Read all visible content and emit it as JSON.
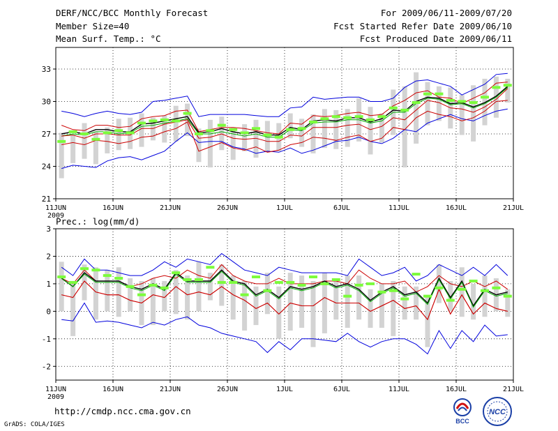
{
  "header": {
    "line1_left": "DERF/NCC/BCC Monthly Forecast",
    "line2_left": "Member Size=40",
    "line3_left": "Mean Surf. Temp.: °C",
    "line1_right": "For 2009/06/11-2009/07/20",
    "line2_right": "Fcst Started Refer Date 2009/06/10",
    "line3_right": "Fcst Produced Date 2009/06/11"
  },
  "footer": {
    "url": "http://cmdp.ncc.cma.gov.cn",
    "grads": "GrADS: COLA/IGES",
    "logo_bcc": "BCC",
    "logo_ncc": "NCC"
  },
  "colors": {
    "envelope": "#0000dd",
    "spread": "#cc0000",
    "mean": "#000000",
    "median": "#00aa00",
    "box": "#d3d3d3",
    "marker": "#7cfc3c"
  },
  "chart_data": [
    {
      "type": "line",
      "title": "Mean Surf. Temp.: °C",
      "x_ticks": [
        "11JUN",
        "16JUN",
        "21JUN",
        "26JUN",
        "1JUL",
        "6JUL",
        "11JUL",
        "16JUL",
        "21JUL"
      ],
      "x_year_label": "2009",
      "x_range": [
        0,
        40
      ],
      "ylim": [
        21,
        35
      ],
      "y_ticks": [
        21,
        24,
        27,
        30,
        33
      ],
      "series": [
        {
          "name": "max",
          "values": [
            23.8,
            24.1,
            24,
            23.9,
            24.5,
            24.8,
            24.9,
            24.6,
            25,
            25.4,
            26.3,
            27.1,
            26.2,
            26.3,
            26.3,
            25.8,
            25.6,
            25.2,
            25.4,
            25.3,
            25.7,
            25.2,
            25.5,
            25.9,
            26.3,
            26.4,
            26.7,
            26.3,
            26.1,
            26.6,
            27.4,
            27.2,
            28,
            28.4,
            28.8,
            28.4,
            28.2,
            28.7,
            29.1,
            29.3
          ]
        },
        {
          "name": "upper",
          "values": [
            29.1,
            28.9,
            28.6,
            28.9,
            29.1,
            28.9,
            28.8,
            29,
            30,
            30.1,
            30.3,
            30.5,
            28.6,
            28.8,
            28.8,
            28.8,
            28.8,
            28.7,
            28.6,
            28.6,
            29.4,
            29.5,
            30.4,
            30.2,
            30.3,
            30.4,
            30.4,
            30,
            30,
            30.3,
            31.3,
            31.9,
            32,
            31.7,
            31.4,
            30.6,
            31.1,
            31.6,
            32.5,
            32.6
          ]
        },
        {
          "name": "spread_hi",
          "values": [
            27.8,
            27.4,
            27.3,
            27.8,
            27.8,
            27.6,
            27.7,
            28.4,
            28.6,
            28.7,
            29.1,
            29.2,
            27.2,
            27.4,
            27.6,
            27.6,
            27.5,
            27.3,
            27.1,
            27,
            28,
            27.9,
            28.7,
            28.6,
            28.7,
            28.9,
            29,
            28.7,
            28.8,
            29.6,
            30.1,
            30.8,
            31,
            30.4,
            30.3,
            29.8,
            30.3,
            30.8,
            31.7,
            31.8
          ]
        },
        {
          "name": "mean",
          "values": [
            27,
            27.2,
            27,
            27.4,
            27.4,
            27.2,
            27.2,
            27.9,
            28,
            28.2,
            28.4,
            28.6,
            27.1,
            27.2,
            27.5,
            27.2,
            27,
            27.2,
            26.9,
            26.9,
            27.6,
            27.4,
            28.2,
            28.3,
            28.2,
            28.5,
            28.5,
            28.1,
            28.4,
            29.2,
            29.1,
            30,
            30.4,
            30.3,
            29.8,
            29.9,
            29.5,
            29.9,
            30.5,
            31.4
          ]
        },
        {
          "name": "median",
          "values": [
            26.8,
            27,
            26.9,
            27.2,
            27.2,
            27,
            27.1,
            27.7,
            27.8,
            28,
            28.2,
            28.4,
            27,
            27,
            27.2,
            27,
            26.8,
            27,
            26.7,
            26.7,
            27.4,
            27.3,
            28,
            28.1,
            28.1,
            28.3,
            28.3,
            28,
            28.2,
            29,
            29,
            29.8,
            30.3,
            30.2,
            29.7,
            29.8,
            29.4,
            29.8,
            30.4,
            31.3
          ]
        },
        {
          "name": "spread_lo",
          "values": [
            26.8,
            26.9,
            26.6,
            27,
            27,
            26.9,
            26.9,
            27.5,
            27.5,
            27.9,
            28.1,
            28.3,
            26.6,
            26.7,
            27,
            26.6,
            26.5,
            26.6,
            26.3,
            26.3,
            26.9,
            26.8,
            27.6,
            27.6,
            27.6,
            27.8,
            27.9,
            27.4,
            27.7,
            28.5,
            28.3,
            29.2,
            30.1,
            29.9,
            29.4,
            29.3,
            29,
            29.5,
            30.2,
            31.2
          ]
        },
        {
          "name": "min",
          "values": [
            26,
            26.2,
            26,
            26.4,
            26.3,
            26.1,
            26.3,
            26.7,
            26.8,
            27.2,
            27.5,
            28.1,
            25.4,
            25.8,
            26.2,
            25.7,
            25.5,
            25.8,
            25.3,
            25.5,
            26,
            26.2,
            26.7,
            26.6,
            26.4,
            26.7,
            26.9,
            26.3,
            26.6,
            27.6,
            27.4,
            28.5,
            29.1,
            28.8,
            28.6,
            28.2,
            28.5,
            29.1,
            30,
            30.1
          ]
        }
      ],
      "boxes": [
        [
          22.9,
          27.1
        ],
        [
          24.3,
          26.9
        ],
        [
          24.7,
          28
        ],
        [
          24.2,
          27.2
        ],
        [
          25.2,
          27.6
        ],
        [
          25.5,
          28.4
        ],
        [
          25.6,
          28.5
        ],
        [
          25.8,
          28.9
        ],
        [
          26.4,
          28.5
        ],
        [
          26.2,
          28.7
        ],
        [
          26.3,
          29.6
        ],
        [
          26.8,
          29.8
        ],
        [
          24.4,
          27.5
        ],
        [
          23.9,
          28.3
        ],
        [
          25.5,
          28.6
        ],
        [
          24.6,
          27.6
        ],
        [
          25.4,
          27.9
        ],
        [
          24.8,
          28.3
        ],
        [
          25.3,
          28.2
        ],
        [
          25.4,
          28
        ],
        [
          26.6,
          28.9
        ],
        [
          25.8,
          28.4
        ],
        [
          25.2,
          28.8
        ],
        [
          25.7,
          29.3
        ],
        [
          25.6,
          29.2
        ],
        [
          25.8,
          29.3
        ],
        [
          26.3,
          30.3
        ],
        [
          25.1,
          29.5
        ],
        [
          26.2,
          28.9
        ],
        [
          26.9,
          31.1
        ],
        [
          23.9,
          31.4
        ],
        [
          26.1,
          32.7
        ],
        [
          27.8,
          31.8
        ],
        [
          28.2,
          31.4
        ],
        [
          27.5,
          31.3
        ],
        [
          26.9,
          30.6
        ],
        [
          26.3,
          31.5
        ],
        [
          27.8,
          32.1
        ],
        [
          28.5,
          32.3
        ],
        [
          29.9,
          32.1
        ]
      ],
      "markers": [
        26.3,
        27.2,
        27,
        26.5,
        27.1,
        27.3,
        27.1,
        28,
        28.2,
        28.3,
        28.2,
        28.9,
        27,
        27.3,
        27.8,
        27.4,
        27.1,
        27.5,
        26.9,
        26.7,
        27.4,
        27.5,
        28.1,
        28.4,
        28.6,
        28.5,
        28.6,
        28.3,
        28.6,
        29.4,
        29.2,
        29.9,
        30.7,
        30.7,
        30.1,
        30,
        29.9,
        30.4,
        31.3,
        31.5
      ]
    },
    {
      "type": "line",
      "title": "Prec.: log(mm/d)",
      "x_ticks": [
        "11JUN",
        "16JUN",
        "21JUN",
        "26JUN",
        "1JUL",
        "6JUL",
        "11JUL",
        "16JUL",
        "21JUL"
      ],
      "x_year_label": "2009",
      "x_range": [
        0,
        40
      ],
      "ylim": [
        -2.5,
        3
      ],
      "y_ticks": [
        -2,
        -1,
        0,
        1,
        2,
        3
      ],
      "series": [
        {
          "name": "max",
          "values": [
            -0.3,
            -0.35,
            0.3,
            -0.4,
            -0.35,
            -0.4,
            -0.5,
            -0.6,
            -0.4,
            -0.5,
            -0.3,
            -0.2,
            -0.5,
            -0.6,
            -0.8,
            -0.9,
            -1.0,
            -1.1,
            -1.5,
            -1.1,
            -1.4,
            -1.0,
            -1.0,
            -1.05,
            -1.1,
            -0.8,
            -1.1,
            -1.3,
            -1.1,
            -1.0,
            -1.0,
            -1.2,
            -1.55,
            -0.7,
            -1.35,
            -0.7,
            -1.1,
            -0.5,
            -0.9,
            -0.85
          ]
        },
        {
          "name": "upper",
          "values": [
            1.6,
            1.3,
            1.9,
            1.5,
            1.5,
            1.4,
            1.3,
            1.3,
            1.5,
            1.8,
            1.6,
            1.9,
            1.8,
            1.7,
            2.1,
            1.8,
            1.5,
            1.4,
            1.3,
            1.6,
            1.5,
            1.4,
            1.4,
            1.4,
            1.4,
            1.3,
            1.9,
            1.6,
            1.3,
            1.4,
            1.6,
            1.1,
            1.3,
            1.7,
            1.5,
            1.3,
            1.6,
            1.3,
            1.7,
            1.3
          ]
        },
        {
          "name": "spread_hi",
          "values": [
            1.2,
            1.0,
            1.5,
            1.1,
            1.1,
            1.1,
            0.9,
            1.0,
            1.2,
            1.3,
            1.2,
            1.5,
            1.3,
            1.2,
            1.7,
            1.3,
            1.1,
            1.0,
            1.0,
            1.2,
            1.0,
            1.0,
            1.0,
            1.1,
            1.1,
            1.0,
            1.5,
            1.2,
            1.0,
            1.0,
            1.1,
            0.7,
            0.9,
            1.3,
            1.0,
            0.9,
            1.1,
            0.9,
            1.1,
            0.8
          ]
        },
        {
          "name": "mean",
          "values": [
            1.2,
            0.9,
            1.4,
            1.1,
            1.1,
            1.1,
            0.9,
            0.8,
            1.0,
            0.8,
            1.4,
            1.1,
            1.1,
            1.1,
            1.5,
            1.1,
            1.0,
            0.6,
            0.8,
            0.5,
            0.9,
            0.8,
            0.9,
            1.1,
            0.9,
            1.0,
            0.8,
            0.4,
            0.7,
            0.9,
            0.6,
            0.7,
            0.3,
            1.2,
            0.5,
            1.1,
            0.2,
            0.8,
            0.6,
            0.7
          ]
        },
        {
          "name": "median",
          "values": [
            1.2,
            0.9,
            1.35,
            1.05,
            1.05,
            1.05,
            0.85,
            0.75,
            0.95,
            0.75,
            1.35,
            1.05,
            1.05,
            1.05,
            1.45,
            1.05,
            0.95,
            0.55,
            0.75,
            0.45,
            0.85,
            0.75,
            0.85,
            1.05,
            0.85,
            0.95,
            0.75,
            0.35,
            0.65,
            0.85,
            0.55,
            0.65,
            0.25,
            1.15,
            0.45,
            1.05,
            0.15,
            0.75,
            0.55,
            0.65
          ]
        },
        {
          "name": "spread_lo",
          "values": [
            0.6,
            0.5,
            1.1,
            0.7,
            0.6,
            0.6,
            0.4,
            0.3,
            0.6,
            0.5,
            0.9,
            0.6,
            0.7,
            0.6,
            0.9,
            0.6,
            0.4,
            0.1,
            0.3,
            -0.1,
            0.3,
            0.2,
            0.2,
            0.5,
            0.3,
            0.3,
            0.3,
            0.0,
            0.2,
            0.4,
            0.1,
            0.2,
            -0.3,
            0.8,
            -0.1,
            0.6,
            -0.1,
            0.3,
            0.1,
            0.0
          ]
        },
        {
          "name": "min",
          "values": [
            0.6,
            0.5,
            1.1,
            0.7,
            0.6,
            0.6,
            0.4,
            0.3,
            0.6,
            0.5,
            0.9,
            0.6,
            0.7,
            0.6,
            0.9,
            0.6,
            0.4,
            0.1,
            0.3,
            -0.1,
            0.3,
            0.2,
            0.2,
            0.5,
            0.3,
            0.3,
            0.3,
            0.0,
            0.2,
            0.4,
            0.1,
            0.2,
            -0.3,
            0.8,
            -0.1,
            0.6,
            -0.1,
            0.3,
            0.1,
            0.0
          ]
        }
      ],
      "boxes": [
        [
          0.0,
          1.8
        ],
        [
          -0.9,
          1.0
        ],
        [
          0.4,
          1.7
        ],
        [
          -0.3,
          1.6
        ],
        [
          0.0,
          1.5
        ],
        [
          -0.2,
          1.6
        ],
        [
          0.0,
          1.2
        ],
        [
          -0.5,
          1.1
        ],
        [
          -0.5,
          1.2
        ],
        [
          0.0,
          1.1
        ],
        [
          -0.1,
          1.5
        ],
        [
          -0.3,
          1.3
        ],
        [
          0.0,
          1.8
        ],
        [
          0.4,
          1.4
        ],
        [
          0.2,
          1.7
        ],
        [
          -0.3,
          1.3
        ],
        [
          -0.7,
          1.1
        ],
        [
          -0.5,
          0.9
        ],
        [
          -0.1,
          1.4
        ],
        [
          -1.0,
          0.9
        ],
        [
          -0.7,
          1.4
        ],
        [
          -0.6,
          1.3
        ],
        [
          -1.3,
          1.1
        ],
        [
          -0.8,
          1.4
        ],
        [
          -0.3,
          1.2
        ],
        [
          -0.6,
          1.3
        ],
        [
          -0.3,
          1.3
        ],
        [
          -0.6,
          0.8
        ],
        [
          -0.6,
          1.0
        ],
        [
          -0.9,
          1.1
        ],
        [
          -0.3,
          0.9
        ],
        [
          -0.3,
          0.9
        ],
        [
          -1.3,
          0.6
        ],
        [
          0.3,
          1.7
        ],
        [
          0.0,
          1.1
        ],
        [
          -0.2,
          1.6
        ],
        [
          -0.3,
          1.0
        ],
        [
          -0.2,
          1.3
        ],
        [
          0.0,
          1.2
        ],
        [
          -0.2,
          0.8
        ]
      ],
      "markers": [
        1.25,
        1.05,
        1.55,
        1.5,
        1.3,
        1.2,
        0.9,
        0.6,
        0.95,
        0.85,
        1.4,
        1.15,
        1.15,
        1.6,
        1.05,
        1.05,
        0.6,
        1.25,
        0.75,
        1.05,
        1.05,
        0.95,
        1.25,
        1.0,
        1.15,
        0.55,
        0.95,
        1.0,
        0.7,
        0.75,
        0.45,
        1.35,
        0.55,
        0.85,
        0.4,
        0.8,
        1.1,
        0.75,
        0.85,
        0.55
      ]
    }
  ]
}
